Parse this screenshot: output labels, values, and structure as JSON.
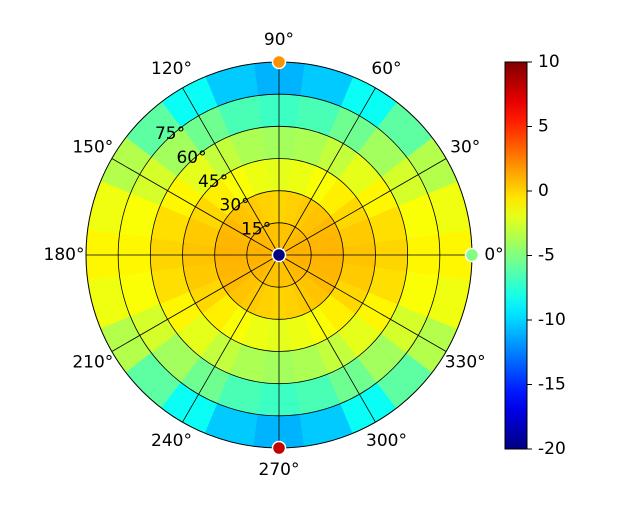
{
  "chart_data": {
    "type": "polar-heatmap",
    "theta": [
      0,
      15,
      30,
      45,
      60,
      75,
      90,
      105,
      120,
      135,
      150,
      165,
      180,
      195,
      210,
      225,
      240,
      255,
      270,
      285,
      300,
      315,
      330,
      345
    ],
    "r_edges": [
      0,
      15,
      30,
      45,
      60,
      75,
      90
    ],
    "values": [
      [
        1,
        1,
        0.9,
        0.8,
        0.6,
        0.5,
        0.5,
        0.5,
        0.6,
        0.8,
        0.9,
        1,
        1,
        1,
        0.9,
        0.8,
        0.6,
        0.5,
        0.5,
        0.5,
        0.6,
        0.8,
        0.9,
        1
      ],
      [
        1,
        0.9,
        0.8,
        0.5,
        0.3,
        0.1,
        0,
        0.1,
        0.3,
        0.5,
        0.8,
        0.9,
        1,
        0.9,
        0.8,
        0.5,
        0.3,
        0.1,
        0,
        0.1,
        0.3,
        0.5,
        0.8,
        0.9
      ],
      [
        0.5,
        0.3,
        -0.1,
        -0.8,
        -1.4,
        -1.8,
        -2,
        -1.8,
        -1.4,
        -0.8,
        -0.1,
        0.3,
        0.5,
        0.3,
        -0.1,
        -0.8,
        -1.4,
        -1.8,
        -2,
        -1.8,
        -1.4,
        -0.8,
        -0.1,
        0.3
      ],
      [
        0,
        -0.3,
        -1,
        -2,
        -3,
        -3.7,
        -4,
        -3.7,
        -3,
        -2,
        -1,
        -0.3,
        0,
        -0.3,
        -1,
        -2,
        -3,
        -3.7,
        -4,
        -3.7,
        -3,
        -2,
        -1,
        -0.3
      ],
      [
        -1,
        -1.4,
        -2.5,
        -4,
        -5.5,
        -6.6,
        -7,
        -6.6,
        -5.5,
        -4,
        -2.5,
        -1.4,
        -1,
        -1.4,
        -2.5,
        -4,
        -5.5,
        -6.6,
        -7,
        -6.6,
        -5.5,
        -4,
        -2.5,
        -1.4
      ],
      [
        -1,
        -1.7,
        -3.5,
        -6,
        -8.5,
        -10.3,
        -11,
        -10.3,
        -8.5,
        -6,
        -3.5,
        -1.7,
        -1,
        -1.7,
        -3.5,
        -6,
        -8.5,
        -10.3,
        -11,
        -10.3,
        -8.5,
        -6,
        -3.5,
        -1.7
      ]
    ],
    "points": {
      "theta": [
        0,
        90,
        270,
        0
      ],
      "r": [
        90,
        90,
        90,
        0
      ],
      "values": [
        -5,
        2,
        8,
        -20
      ]
    },
    "rlim": [
      0,
      90
    ],
    "rticks": [
      {
        "value": 15,
        "label": "15°"
      },
      {
        "value": 30,
        "label": "30°"
      },
      {
        "value": 45,
        "label": "45°"
      },
      {
        "value": 60,
        "label": "60°"
      },
      {
        "value": 75,
        "label": "75°"
      }
    ],
    "thetaticks": [
      {
        "value": 0,
        "label": "0°"
      },
      {
        "value": 30,
        "label": "30°"
      },
      {
        "value": 60,
        "label": "60°"
      },
      {
        "value": 90,
        "label": "90°"
      },
      {
        "value": 120,
        "label": "120°"
      },
      {
        "value": 150,
        "label": "150°"
      },
      {
        "value": 180,
        "label": "180°"
      },
      {
        "value": 210,
        "label": "210°"
      },
      {
        "value": 240,
        "label": "240°"
      },
      {
        "value": 270,
        "label": "270°"
      },
      {
        "value": 300,
        "label": "300°"
      },
      {
        "value": 330,
        "label": "330°"
      }
    ],
    "colormap": "jet",
    "clim": [
      -20,
      10
    ],
    "cticks": [
      -20,
      -15,
      -10,
      -5,
      0,
      5,
      10
    ],
    "grid": true
  }
}
